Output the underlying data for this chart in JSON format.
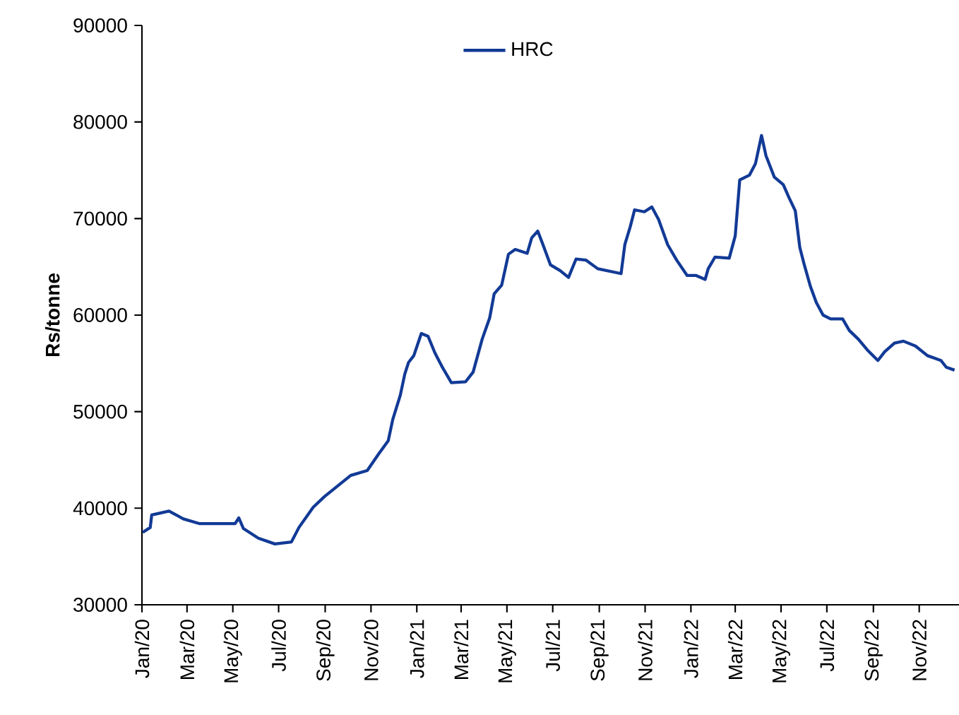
{
  "chart_data": {
    "type": "line",
    "ylabel": "Rs/tonne",
    "legend": "top",
    "marker": "none",
    "line_style": "solid",
    "grid": false,
    "xlim": [
      "2020-01-01",
      "2022-12-24"
    ],
    "ylim": [
      30000,
      90000
    ],
    "yticks": [
      30000,
      40000,
      50000,
      60000,
      70000,
      80000,
      90000
    ],
    "xticks": [
      {
        "value": "2020-01-01",
        "label": "Jan/20"
      },
      {
        "value": "2020-03-01",
        "label": "Mar/20"
      },
      {
        "value": "2020-05-01",
        "label": "May/20"
      },
      {
        "value": "2020-07-01",
        "label": "Jul/20"
      },
      {
        "value": "2020-09-01",
        "label": "Sep/20"
      },
      {
        "value": "2020-11-01",
        "label": "Nov/20"
      },
      {
        "value": "2021-01-01",
        "label": "Jan/21"
      },
      {
        "value": "2021-03-01",
        "label": "Mar/21"
      },
      {
        "value": "2021-05-01",
        "label": "May/21"
      },
      {
        "value": "2021-07-01",
        "label": "Jul/21"
      },
      {
        "value": "2021-09-01",
        "label": "Sep/21"
      },
      {
        "value": "2021-11-01",
        "label": "Nov/21"
      },
      {
        "value": "2022-01-01",
        "label": "Jan/22"
      },
      {
        "value": "2022-03-01",
        "label": "Mar/22"
      },
      {
        "value": "2022-05-01",
        "label": "May/22"
      },
      {
        "value": "2022-07-01",
        "label": "Jul/22"
      },
      {
        "value": "2022-09-01",
        "label": "Sep/22"
      },
      {
        "value": "2022-11-01",
        "label": "Nov/22"
      }
    ],
    "x": [
      "2020-01-02",
      "2020-01-12",
      "2020-01-14",
      "2020-02-06",
      "2020-02-25",
      "2020-03-18",
      "2020-05-04",
      "2020-05-09",
      "2020-05-15",
      "2020-06-04",
      "2020-06-26",
      "2020-07-18",
      "2020-07-28",
      "2020-08-16",
      "2020-08-31",
      "2020-10-05",
      "2020-10-27",
      "2020-11-11",
      "2020-11-24",
      "2020-11-30",
      "2020-12-10",
      "2020-12-16",
      "2020-12-21",
      "2020-12-28",
      "2021-01-07",
      "2021-01-16",
      "2021-01-25",
      "2021-02-04",
      "2021-02-16",
      "2021-03-07",
      "2021-03-17",
      "2021-03-29",
      "2021-04-08",
      "2021-04-14",
      "2021-04-24",
      "2021-05-03",
      "2021-05-12",
      "2021-05-28",
      "2021-06-03",
      "2021-06-11",
      "2021-06-17",
      "2021-06-28",
      "2021-07-11",
      "2021-07-22",
      "2021-08-01",
      "2021-08-14",
      "2021-08-30",
      "2021-09-30",
      "2021-10-05",
      "2021-10-12",
      "2021-10-18",
      "2021-10-31",
      "2021-11-10",
      "2021-11-19",
      "2021-12-01",
      "2021-12-13",
      "2021-12-27",
      "2022-01-08",
      "2022-01-20",
      "2022-01-24",
      "2022-02-02",
      "2022-02-21",
      "2022-03-01",
      "2022-03-07",
      "2022-03-20",
      "2022-03-28",
      "2022-04-05",
      "2022-04-11",
      "2022-04-22",
      "2022-05-04",
      "2022-05-12",
      "2022-05-20",
      "2022-05-26",
      "2022-06-01",
      "2022-06-09",
      "2022-06-17",
      "2022-06-26",
      "2022-07-06",
      "2022-07-22",
      "2022-07-31",
      "2022-08-12",
      "2022-08-25",
      "2022-09-07",
      "2022-09-16",
      "2022-09-29",
      "2022-10-11",
      "2022-10-27",
      "2022-11-12",
      "2022-11-30",
      "2022-12-07",
      "2022-12-18"
    ],
    "series": [
      {
        "name": "HRC",
        "color": "#123a96",
        "values": [
          37500,
          38000,
          39300,
          39700,
          38900,
          38400,
          38400,
          39000,
          37900,
          36900,
          36300,
          36500,
          38000,
          40100,
          41200,
          43400,
          43900,
          45600,
          47000,
          49200,
          51700,
          53900,
          55100,
          55800,
          58100,
          57800,
          56100,
          54600,
          53000,
          53100,
          54100,
          57500,
          59700,
          62200,
          63100,
          66300,
          66800,
          66400,
          68000,
          68700,
          67500,
          65200,
          64600,
          63900,
          65800,
          65700,
          64800,
          64300,
          67300,
          69100,
          70900,
          70700,
          71200,
          69900,
          67300,
          65700,
          64100,
          64100,
          63700,
          64800,
          66000,
          65900,
          68200,
          74000,
          74500,
          75700,
          78600,
          76500,
          74300,
          73500,
          72100,
          70800,
          67000,
          65200,
          63000,
          61300,
          60000,
          59600,
          59600,
          58400,
          57500,
          56300,
          55300,
          56200,
          57100,
          57300,
          56800,
          55800,
          55300,
          54600,
          54300
        ]
      }
    ]
  }
}
